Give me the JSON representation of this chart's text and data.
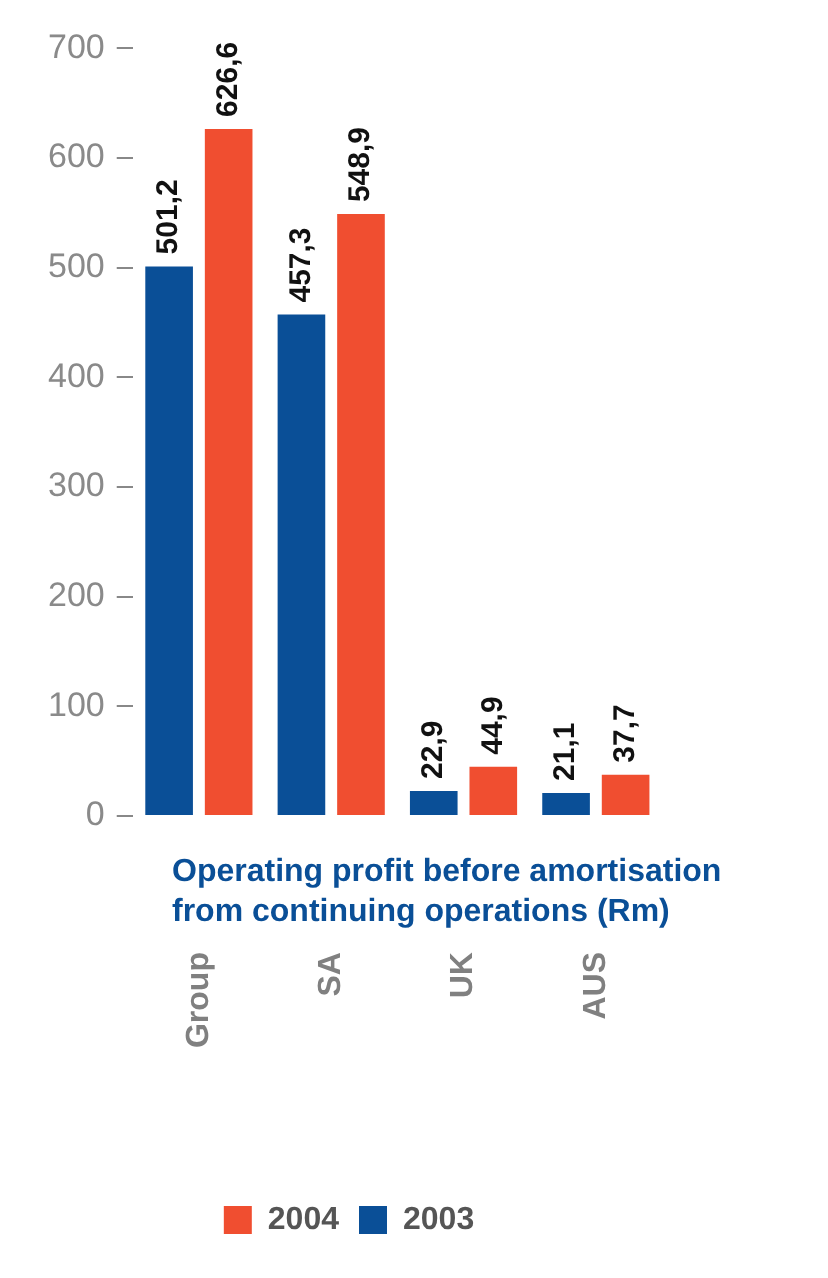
{
  "chart_data": {
    "type": "bar",
    "xlabel": "Operating profit before amortisation\nfrom continuing operations (Rm)",
    "categories": [
      "Group",
      "SA",
      "UK",
      "AUS"
    ],
    "series": [
      {
        "name": "2003",
        "color": "#0a4f97",
        "values": [
          501.2,
          457.3,
          22.9,
          21.1
        ],
        "value_labels": [
          "501,2",
          "457,3",
          "22,9",
          "21,1"
        ]
      },
      {
        "name": "2004",
        "color": "#f04e30",
        "values": [
          626.6,
          548.9,
          44.9,
          37.7
        ],
        "value_labels": [
          "626,6",
          "548,9",
          "44,9",
          "37,7"
        ]
      }
    ],
    "ylim": [
      0,
      700
    ],
    "yticks": [
      0,
      100,
      200,
      300,
      400,
      500,
      600,
      700
    ],
    "grid": false,
    "legend": "bottom"
  }
}
